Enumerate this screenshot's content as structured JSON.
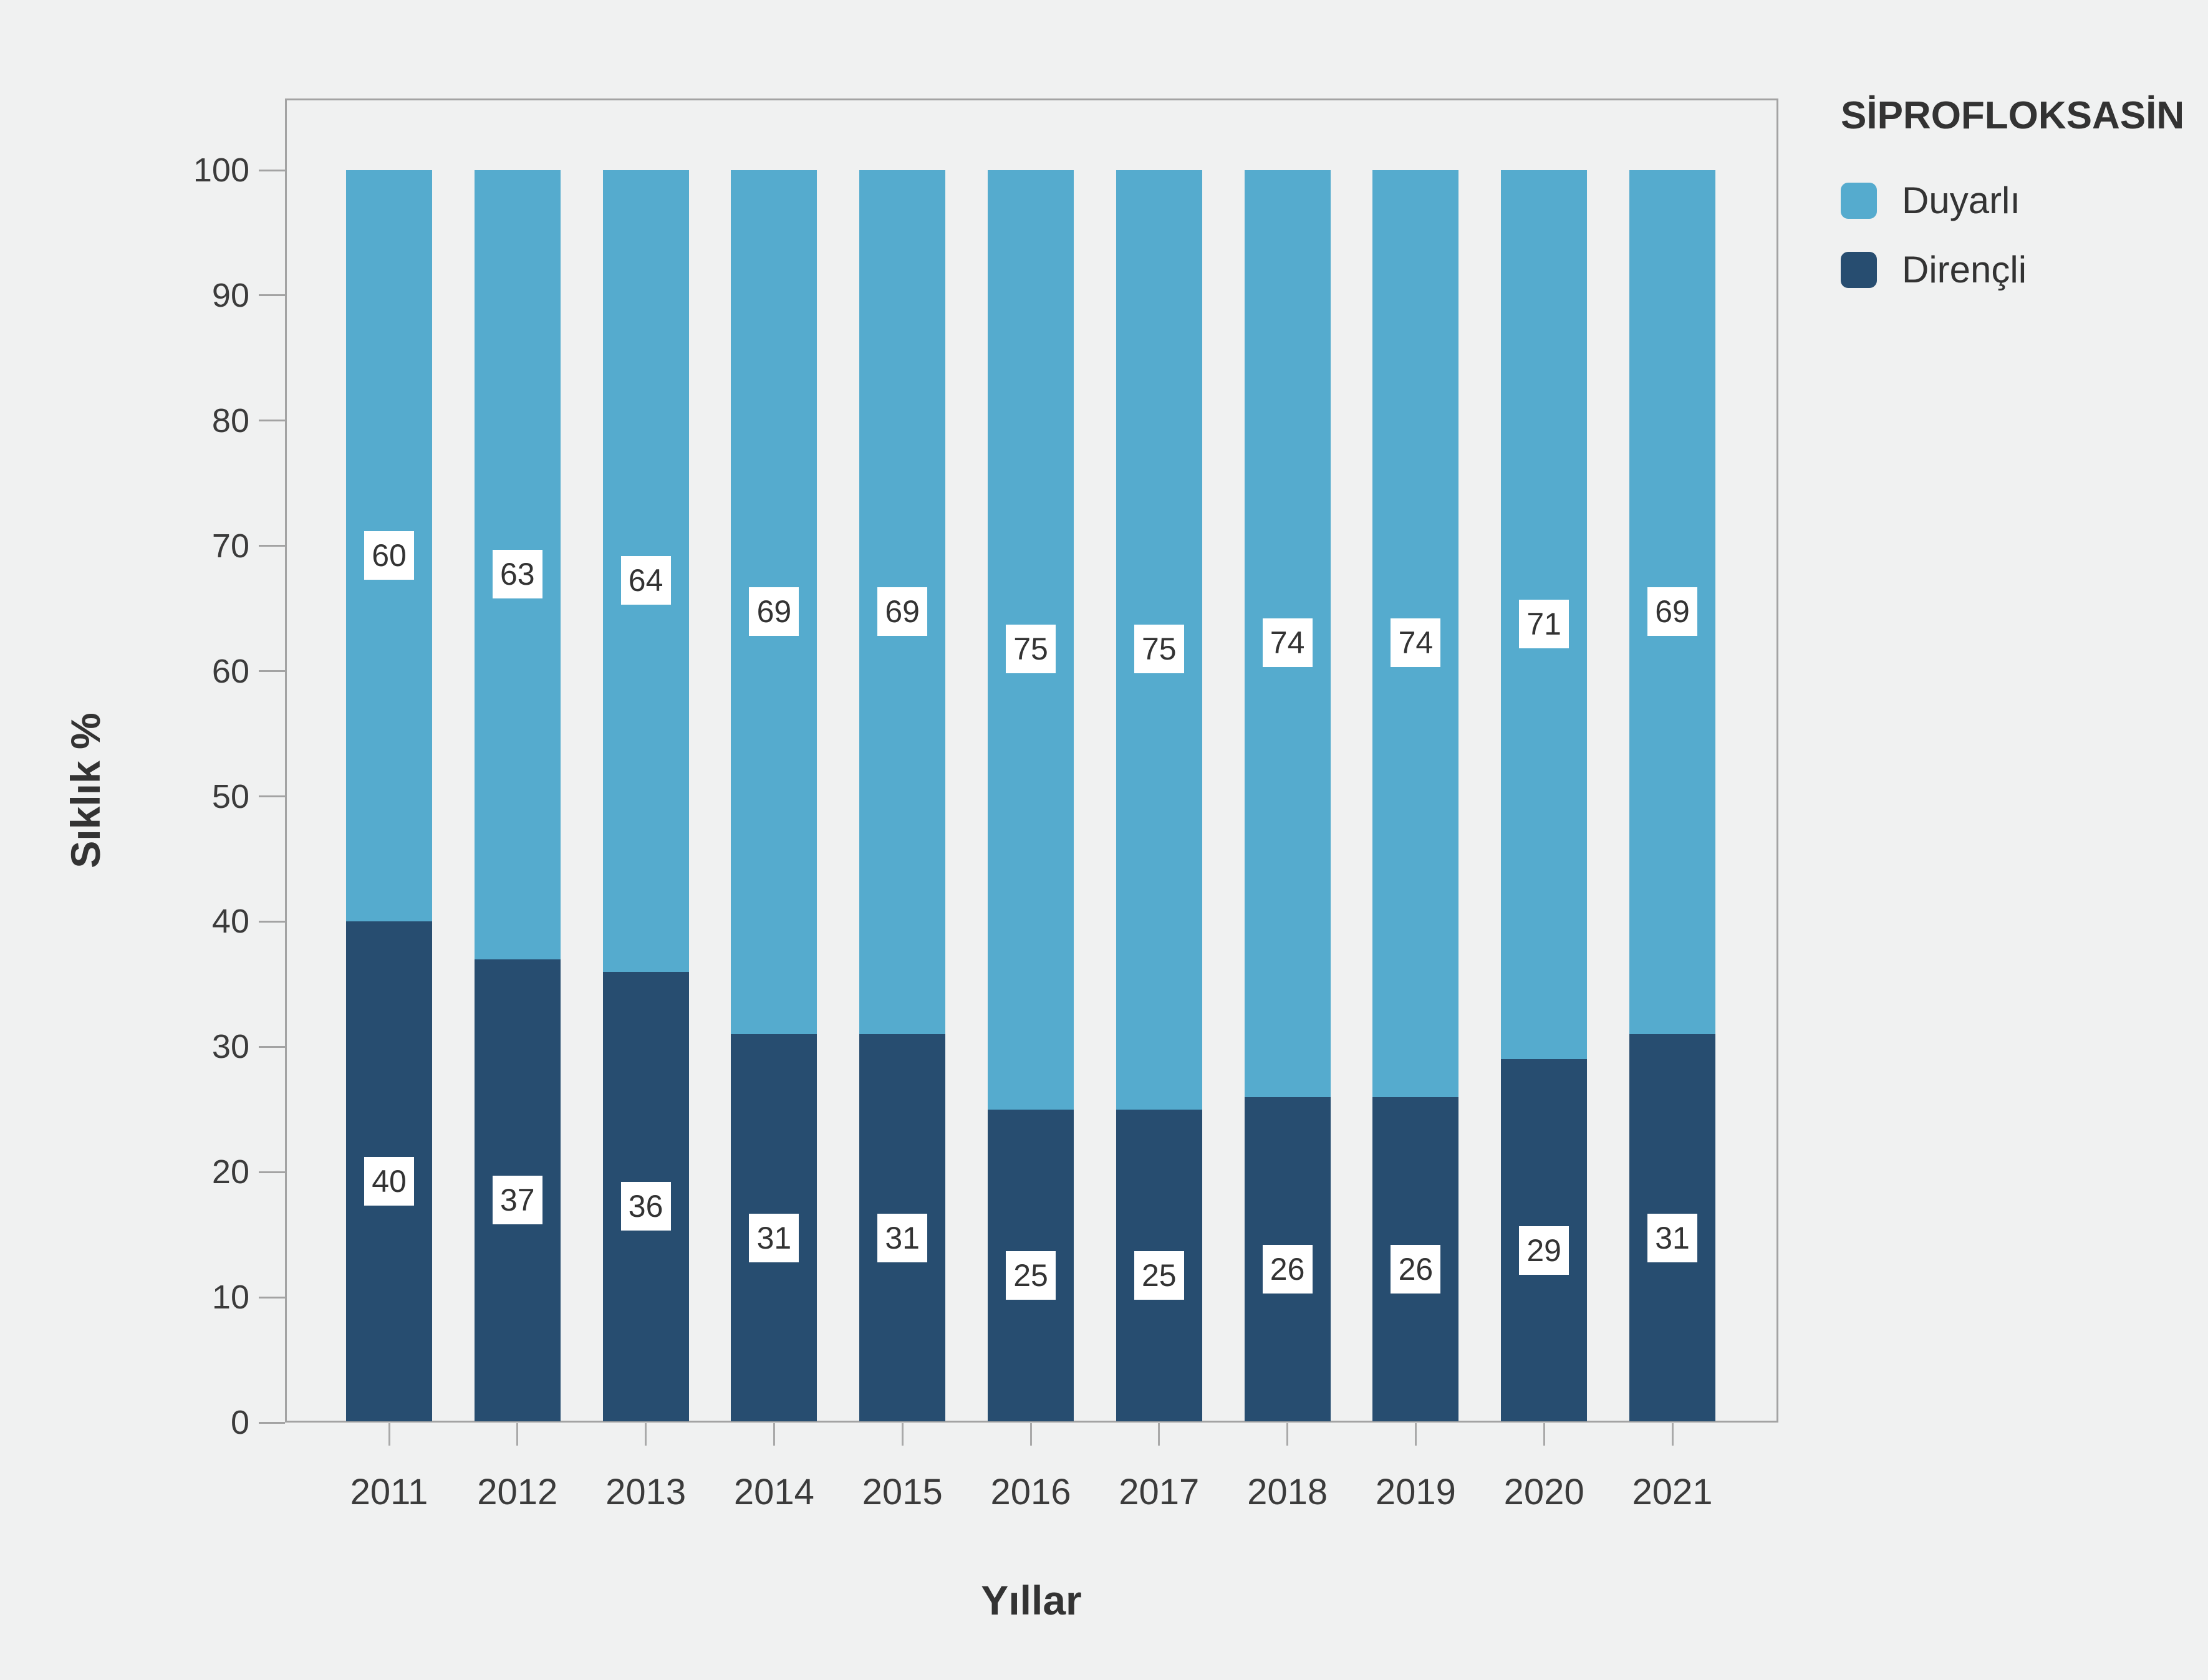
{
  "chart_data": {
    "type": "bar",
    "stacked": true,
    "orientation": "vertical",
    "categories": [
      "2011",
      "2012",
      "2013",
      "2014",
      "2015",
      "2016",
      "2017",
      "2018",
      "2019",
      "2020",
      "2021"
    ],
    "series": [
      {
        "name": "Duyarlı",
        "color": "#55abce",
        "values": [
          60,
          63,
          64,
          69,
          69,
          75,
          75,
          74,
          74,
          71,
          69
        ]
      },
      {
        "name": "Dirençli",
        "color": "#274d70",
        "values": [
          40,
          37,
          36,
          31,
          31,
          25,
          25,
          26,
          26,
          29,
          31
        ]
      }
    ],
    "legend_title": "SİPROFLOKSASİN",
    "legend_position": "top-right",
    "xlabel": "Yıllar",
    "ylabel": "Sıklık %",
    "ylim": [
      0,
      105.7
    ],
    "yticks": [
      0,
      10,
      20,
      30,
      40,
      50,
      60,
      70,
      80,
      90,
      100
    ],
    "grid": false,
    "bar_value_labels": "centered-white-boxes"
  },
  "colors": {
    "background": "#f0f1f1",
    "axis": "#a3a3a3",
    "text": "#333333",
    "label_box_bg": "#ffffff"
  }
}
